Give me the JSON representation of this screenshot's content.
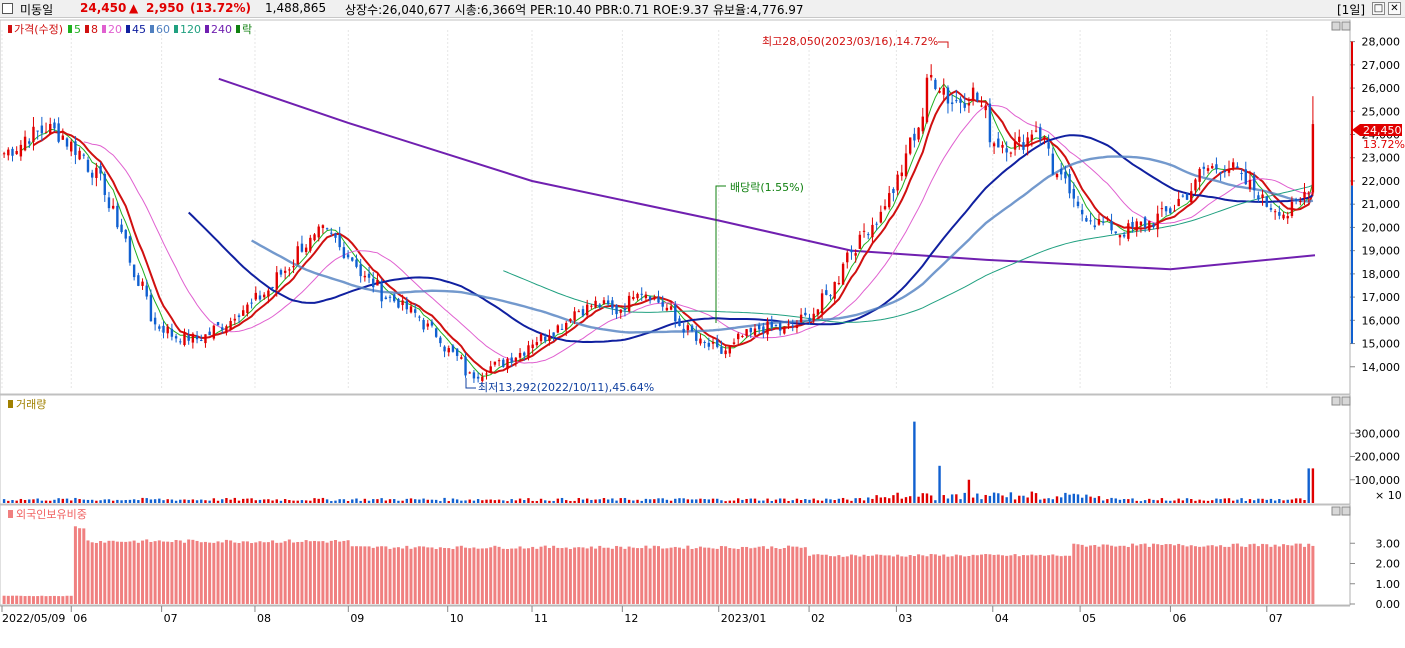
{
  "header": {
    "stock_name": "미동일",
    "price": "24,450",
    "change_arrow": "▲",
    "change": "2,950",
    "change_pct": "(13.72%)",
    "volume": "1,488,865",
    "info": "상장수:26,040,677 시총:6,366억 PER:10.40 PBR:0.71 ROE:9.37 유보율:4,776.97",
    "period": "[1일]",
    "colors": {
      "up": "#e00000",
      "down": "#1060d0"
    }
  },
  "price_panel": {
    "legend": [
      {
        "label": "가격(수정)",
        "color": "#d01010"
      },
      {
        "label": "5",
        "color": "#20b020"
      },
      {
        "label": "8",
        "color": "#d01010"
      },
      {
        "label": "20",
        "color": "#e060d0"
      },
      {
        "label": "45",
        "color": "#1020a0"
      },
      {
        "label": "60",
        "color": "#5080c0"
      },
      {
        "label": "120",
        "color": "#20a080"
      },
      {
        "label": "240",
        "color": "#7020b0"
      },
      {
        "label": "락",
        "color": "#108010"
      }
    ],
    "high_annotation": "최고28,050(2023/03/16),14.72%",
    "low_annotation": "최저13,292(2022/10/11),45.64%",
    "dividend_annotation": "배당락(1.55%)",
    "current_price_label": "24,450",
    "current_pct_label": "13.72%"
  },
  "volume_panel": {
    "title": "거래량",
    "unit_label": "× 10"
  },
  "foreign_panel": {
    "title": "외국인보유비중"
  },
  "x_axis": {
    "labels": [
      {
        "text": "2022/05/09",
        "date": "2022-05-09"
      },
      {
        "text": "06",
        "date": "2022-06-01"
      },
      {
        "text": "07",
        "date": "2022-07-01"
      },
      {
        "text": "08",
        "date": "2022-08-01"
      },
      {
        "text": "09",
        "date": "2022-09-01"
      },
      {
        "text": "10",
        "date": "2022-10-04"
      },
      {
        "text": "11",
        "date": "2022-11-01"
      },
      {
        "text": "12",
        "date": "2022-12-01"
      },
      {
        "text": "2023/01",
        "date": "2023-01-02"
      },
      {
        "text": "02",
        "date": "2023-02-01"
      },
      {
        "text": "03",
        "date": "2023-03-02"
      },
      {
        "text": "04",
        "date": "2023-04-03"
      },
      {
        "text": "05",
        "date": "2023-05-02"
      },
      {
        "text": "06",
        "date": "2023-06-01"
      },
      {
        "text": "07",
        "date": "2023-07-03"
      }
    ]
  },
  "chart_data": [
    {
      "type": "candlestick",
      "title": "가격(수정)",
      "x_start": "2022-05-09",
      "x_end": "2023-07-19",
      "ylim": [
        13000,
        28500
      ],
      "yticks": [
        14000,
        15000,
        16000,
        17000,
        18000,
        19000,
        20000,
        21000,
        22000,
        23000,
        24000,
        25000,
        26000,
        27000,
        28000
      ],
      "close_path": [
        [
          "2022-05-09",
          23200
        ],
        [
          "2022-05-16",
          23900
        ],
        [
          "2022-05-23",
          24300
        ],
        [
          "2022-05-30",
          23700
        ],
        [
          "2022-06-07",
          22500
        ],
        [
          "2022-06-14",
          20600
        ],
        [
          "2022-06-21",
          18000
        ],
        [
          "2022-06-28",
          15800
        ],
        [
          "2022-07-05",
          15300
        ],
        [
          "2022-07-12",
          15200
        ],
        [
          "2022-07-19",
          15700
        ],
        [
          "2022-07-26",
          16400
        ],
        [
          "2022-08-02",
          17000
        ],
        [
          "2022-08-09",
          18000
        ],
        [
          "2022-08-16",
          19200
        ],
        [
          "2022-08-23",
          19800
        ],
        [
          "2022-08-30",
          19000
        ],
        [
          "2022-09-06",
          17800
        ],
        [
          "2022-09-13",
          17000
        ],
        [
          "2022-09-20",
          16500
        ],
        [
          "2022-09-27",
          15700
        ],
        [
          "2022-10-04",
          14700
        ],
        [
          "2022-10-11",
          13600
        ],
        [
          "2022-10-18",
          14000
        ],
        [
          "2022-10-25",
          14400
        ],
        [
          "2022-11-01",
          15100
        ],
        [
          "2022-11-08",
          15600
        ],
        [
          "2022-11-15",
          16400
        ],
        [
          "2022-11-22",
          16700
        ],
        [
          "2022-11-29",
          16400
        ],
        [
          "2022-12-06",
          17400
        ],
        [
          "2022-12-13",
          16800
        ],
        [
          "2022-12-20",
          15800
        ],
        [
          "2022-12-27",
          15000
        ],
        [
          "2023-01-03",
          14600
        ],
        [
          "2023-01-10",
          15300
        ],
        [
          "2023-01-17",
          15700
        ],
        [
          "2023-01-24",
          15600
        ],
        [
          "2023-01-31",
          16100
        ],
        [
          "2023-02-07",
          17000
        ],
        [
          "2023-02-14",
          18900
        ],
        [
          "2023-02-21",
          20000
        ],
        [
          "2023-02-28",
          21300
        ],
        [
          "2023-03-07",
          23600
        ],
        [
          "2023-03-14",
          26500
        ],
        [
          "2023-03-21",
          25400
        ],
        [
          "2023-03-28",
          25800
        ],
        [
          "2023-04-04",
          23700
        ],
        [
          "2023-04-11",
          23500
        ],
        [
          "2023-04-18",
          24300
        ],
        [
          "2023-04-25",
          22200
        ],
        [
          "2023-05-02",
          20700
        ],
        [
          "2023-05-09",
          20200
        ],
        [
          "2023-05-16",
          19800
        ],
        [
          "2023-05-23",
          20100
        ],
        [
          "2023-05-30",
          20500
        ],
        [
          "2023-06-06",
          21300
        ],
        [
          "2023-06-13",
          22500
        ],
        [
          "2023-06-20",
          22700
        ],
        [
          "2023-06-27",
          21900
        ],
        [
          "2023-07-04",
          21000
        ],
        [
          "2023-07-11",
          20600
        ],
        [
          "2023-07-17",
          21500
        ],
        [
          "2023-07-18",
          24450
        ]
      ],
      "annotations": [
        {
          "text": "최고28,050(2023/03/16),14.72%",
          "date": "2023-03-16",
          "value": 28050
        },
        {
          "text": "최저13,292(2022/10/11),45.64%",
          "date": "2022-10-11",
          "value": 13292
        },
        {
          "text": "배당락(1.55%)",
          "date": "2022-12-28"
        }
      ],
      "moving_averages": [
        {
          "name": "5",
          "color": "#20b020"
        },
        {
          "name": "8",
          "color": "#d01010"
        },
        {
          "name": "20",
          "color": "#e060d0"
        },
        {
          "name": "45",
          "color": "#1020a0"
        },
        {
          "name": "60",
          "color": "#5080c0"
        },
        {
          "name": "120",
          "color": "#20a080"
        },
        {
          "name": "240",
          "color": "#7020b0",
          "path": [
            [
              "2022-07-20",
              26400
            ],
            [
              "2022-09-01",
              24500
            ],
            [
              "2022-11-01",
              22000
            ],
            [
              "2023-01-02",
              20300
            ],
            [
              "2023-02-15",
              19000
            ],
            [
              "2023-04-01",
              18600
            ],
            [
              "2023-06-01",
              18200
            ],
            [
              "2023-07-19",
              18800
            ]
          ]
        }
      ]
    },
    {
      "type": "bar",
      "title": "거래량",
      "unit": "× 10",
      "ylim": [
        0,
        400000
      ],
      "yticks": [
        100000,
        200000,
        300000
      ],
      "bars": [
        {
          "date": "2023-03-08",
          "value": 350000
        },
        {
          "date": "2023-03-16",
          "value": 160000
        },
        {
          "date": "2023-03-27",
          "value": 100000
        },
        {
          "date": "2023-07-18",
          "value": 148887
        }
      ]
    },
    {
      "type": "bar",
      "title": "외국인보유비중",
      "ylim": [
        0,
        4
      ],
      "yticks": [
        0,
        1,
        2,
        3
      ],
      "color": "#f08080",
      "segments": [
        {
          "from": "2022-05-09",
          "to": "2022-05-31",
          "value": 0.4
        },
        {
          "from": "2022-06-01",
          "to": "2022-06-03",
          "value": 3.8
        },
        {
          "from": "2022-06-04",
          "to": "2022-08-31",
          "value": 3.1
        },
        {
          "from": "2022-09-01",
          "to": "2023-01-31",
          "value": 2.8
        },
        {
          "from": "2023-02-01",
          "to": "2023-04-30",
          "value": 2.4
        },
        {
          "from": "2023-05-01",
          "to": "2023-07-19",
          "value": 2.9
        }
      ]
    }
  ]
}
